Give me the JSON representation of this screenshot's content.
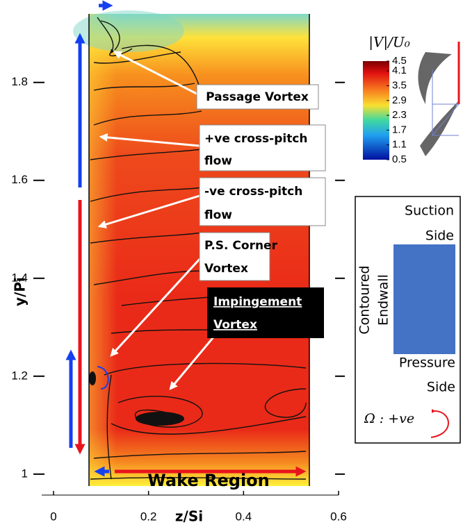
{
  "chart_data": {
    "type": "contour",
    "xlabel": "z/Si",
    "ylabel": "y/Pi",
    "xlim": [
      0,
      0.6
    ],
    "xticks": [
      0,
      0.2,
      0.4,
      0.6
    ],
    "ylim": [
      0.97,
      1.94
    ],
    "yticks": [
      1,
      1.2,
      1.4,
      1.6,
      1.8
    ],
    "colorbar": {
      "label": "|V|/U₀",
      "lim": [
        0.5,
        4.5
      ],
      "ticks": [
        4.5,
        4.1,
        3.5,
        2.9,
        2.3,
        1.7,
        1.1,
        0.5
      ]
    },
    "annotations": [
      [
        "Passage Vortex"
      ],
      [
        "+ve cross-pitch",
        "flow"
      ],
      [
        "-ve cross-pitch",
        "flow"
      ],
      [
        "P.S. Corner",
        "Vortex"
      ],
      [
        "Impingement",
        "Vortex"
      ]
    ],
    "region_label": "Wake Region",
    "panel": {
      "top": [
        "Suction",
        "Side"
      ],
      "side": [
        "Contoured",
        "Endwall"
      ],
      "bottom": [
        "Pressure",
        "Side"
      ],
      "rotation": "Ω : +ve"
    }
  }
}
